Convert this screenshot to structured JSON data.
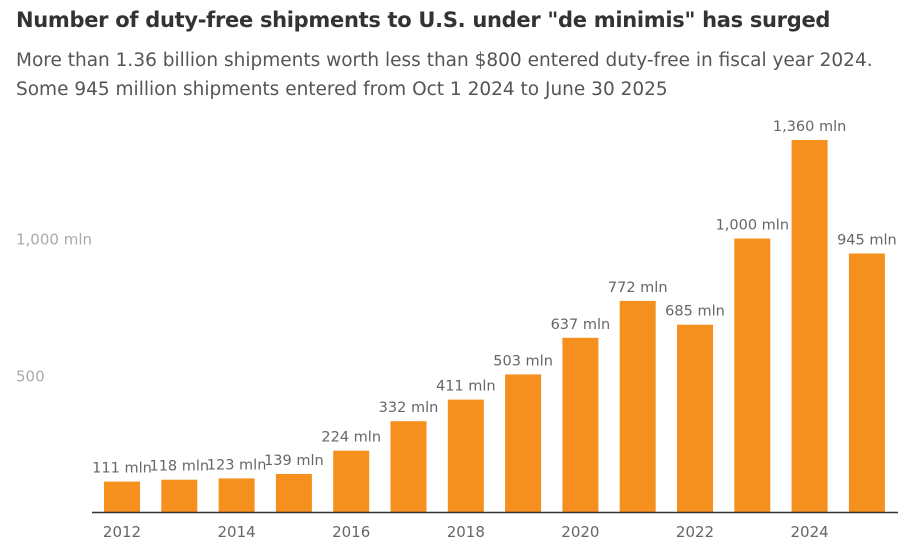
{
  "title": "Number of duty-free shipments to U.S. under \"de minimis\" has surged",
  "subtitle_lines": [
    "More than 1.36 billion shipments worth less than $800 entered duty-free in fiscal year 2024.",
    "Some 945 million shipments entered from Oct 1 2024 to June 30 2025"
  ],
  "colors": {
    "bar": "#F5901E",
    "label": "#666666",
    "axis_label": "#AAAAAA",
    "baseline": "#333333"
  },
  "chart_data": {
    "type": "bar",
    "title": "Number of duty-free shipments to U.S. under \"de minimis\" has surged",
    "categories": [
      "2012",
      "2013",
      "2014",
      "2015",
      "2016",
      "2017",
      "2018",
      "2019",
      "2020",
      "2021",
      "2022",
      "2023",
      "2024",
      "2025"
    ],
    "values": [
      111,
      118,
      123,
      139,
      224,
      332,
      411,
      503,
      637,
      772,
      685,
      1000,
      1360,
      945
    ],
    "data_labels": [
      "111 mln",
      "118 mln",
      "123 mln",
      "139 mln",
      "224 mln",
      "332 mln",
      "411 mln",
      "503 mln",
      "637 mln",
      "772 mln",
      "685 mln",
      "1,000 mln",
      "1,360 mln",
      "945 mln"
    ],
    "x_tick_labels": [
      "2012",
      "",
      "2014",
      "",
      "2016",
      "",
      "2018",
      "",
      "2020",
      "",
      "2022",
      "",
      "2024",
      ""
    ],
    "y_ticks": [
      500,
      1000
    ],
    "y_tick_labels": [
      "500",
      "1,000 mln"
    ],
    "ylim": [
      0,
      1400
    ],
    "xlabel": "",
    "ylabel": "",
    "unit": "mln"
  }
}
